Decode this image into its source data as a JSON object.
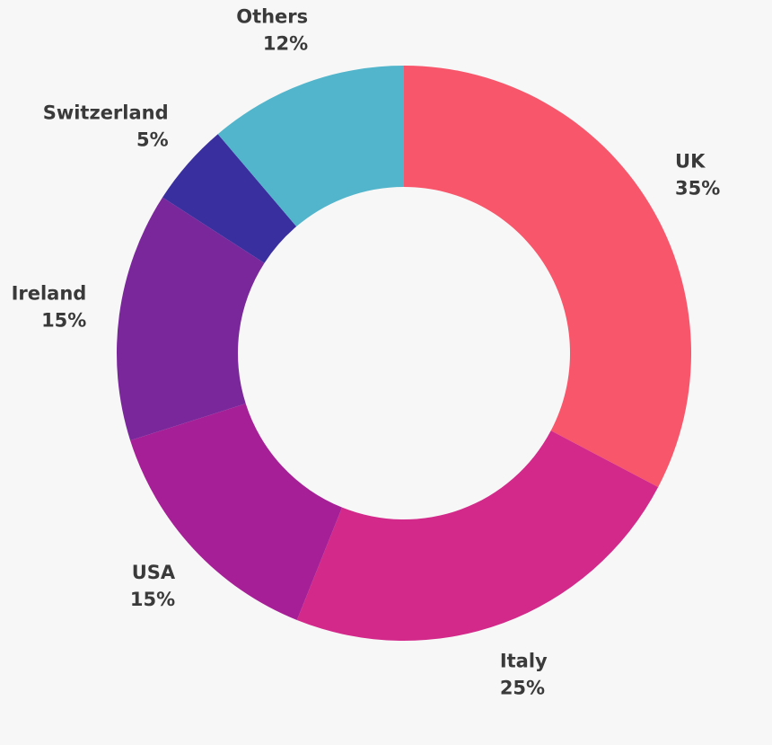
{
  "chart_data": {
    "type": "donut",
    "categories": [
      "UK",
      "Italy",
      "USA",
      "Ireland",
      "Switzerland",
      "Others"
    ],
    "values": [
      35,
      25,
      15,
      15,
      5,
      12
    ],
    "value_labels": [
      "35%",
      "25%",
      "15%",
      "15%",
      "5%",
      "12%"
    ],
    "colors": [
      "#f8566b",
      "#d2298a",
      "#a71f96",
      "#7b279c",
      "#3a2f9e",
      "#52b5cb"
    ]
  }
}
